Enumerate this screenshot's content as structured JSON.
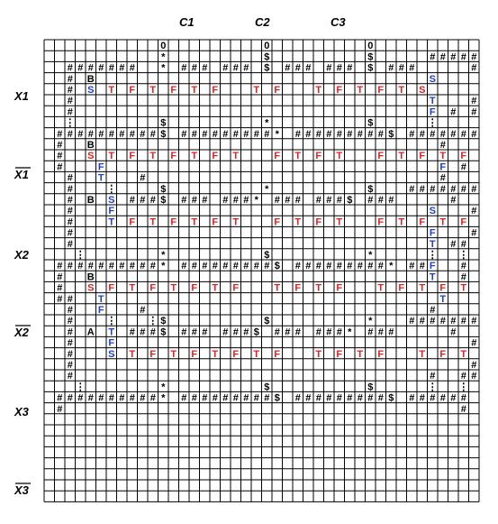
{
  "columns": [
    "C1",
    "C2",
    "C3"
  ],
  "rows": [
    {
      "label": "X1",
      "bar": false
    },
    {
      "label": "X1",
      "bar": true
    },
    {
      "label": "X2",
      "bar": false
    },
    {
      "label": "X2",
      "bar": true
    },
    {
      "label": "X3",
      "bar": false
    },
    {
      "label": "X3",
      "bar": true
    }
  ],
  "colors": {
    "red": "#e02020",
    "blue": "#1a3fd6",
    "black": "#000000",
    "grid": "#000000"
  },
  "cells": [
    "...........0.........0.........0..........",
    "...........*.........$.........$.....######",
    "..#######..*.###.###.$.###.###.$.###.....##",
    "..#.B................................S....#",
    "..#.S.rT.rF.rT.rF.rT.rF.r..rT.rF.r..rT.rF.rT.rF.rT.rS.....#",
    "..#..................................T...##",
    "..#..................................F.#.##",
    "..:........$.........*.........$.....:....",
    ".##########$.#########*.#########$.#######",
    ".#..B.................................#...",
    ".#..rS.rT.rF.rT.rF.rT.rF.rT.r..rF.rT.rF.rT.r..rF.rT.rF.rT.rF.rT.rF.#...",
    ".#...F................................F.#..",
    "..#..T...#............................#...",
    "..#...:....$.........*.........$...#######",
    "..#.B.S.###$.###.###*.###.###$.###.....#..",
    "..#...F..............................S...#",
    "..#...T.rF.rT.rF.rT.rF.rT.r..rF.rT.rF.rT.r..rF.rT.rF.rT.rF.rT.rF.rT.rS..#",
    "..#..................................F...#",
    "..#..................................T.##.#",
    "...:.......*.........$.........*.....:..:.",
    ".##########*.#########$.#########*.##F..#.",
    ".#..B................................T..#.",
    ".#..rS.rF.rT.rF.rT.rF.rT.rF.r..rT.rF.rT.rF.r..rT.rF.rT.rF.rT.rF.rT.rF.rF..",
    ".##..T................................T...",
    "..#..F...#...........................#....",
    "..#...:...:$.........$.........*...#######",
    "..#.A.T.###$.###.###$.###.###*.###.....#..",
    "..#...F..................................#",
    "..#...S.rT.rF.rT.rF.rT.rF.rT.rF.r..rT.rF.rT.rF.r..rT.rF.rT.rF.rT.rF.rT.rF.rS...#",
    "..#......................................#",
    "..#..................................#..##",
    "...:.......*.........$.........$.....:..:.",
    ".##########*.#########$.#########$.######.",
    ".#......................................#..",
    "..........................................."
  ]
}
